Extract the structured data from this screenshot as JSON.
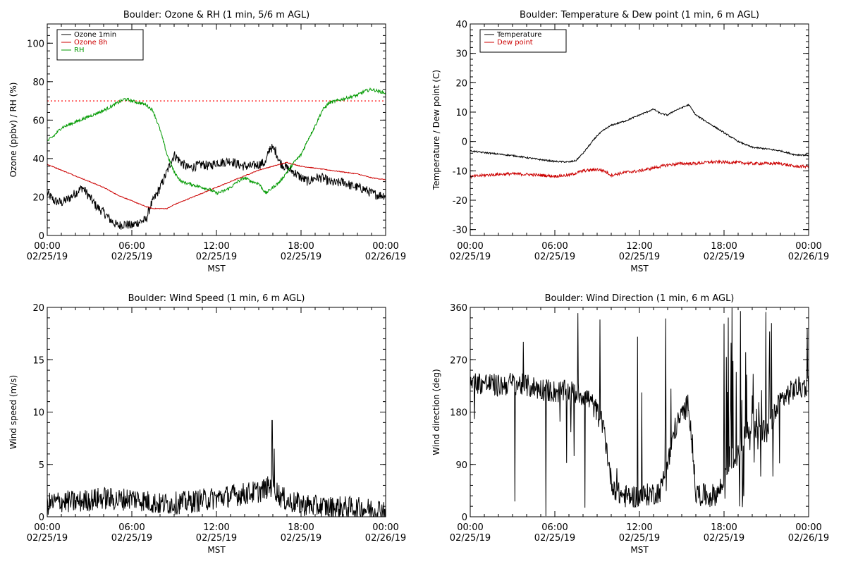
{
  "x_tick_labels": [
    "00:00\n02/25/19",
    "06:00\n02/25/19",
    "12:00\n02/25/19",
    "18:00\n02/25/19",
    "00:00\n02/26/19"
  ],
  "x_tick_hours": [
    0,
    6,
    12,
    18,
    24
  ],
  "chart_data": [
    {
      "id": "ozone-rh",
      "type": "line",
      "title": "Boulder: Ozone & RH (1 min, 5/6 m AGL)",
      "xlabel": "MST",
      "ylabel": "Ozone (ppbv) / RH (%)",
      "xlim": [
        0,
        24
      ],
      "ylim": [
        0,
        110
      ],
      "yticks": [
        0,
        20,
        40,
        60,
        80,
        100
      ],
      "legend_position": "top-left",
      "reference_line": {
        "y": 70,
        "color": "#ff0000",
        "style": "dotted"
      },
      "series": [
        {
          "name": "Ozone 1min",
          "color": "#000000",
          "noise": 2.5,
          "points": [
            [
              0,
              22
            ],
            [
              0.5,
              18
            ],
            [
              1,
              17
            ],
            [
              1.5,
              19
            ],
            [
              2,
              22
            ],
            [
              2.5,
              25
            ],
            [
              3,
              20
            ],
            [
              3.5,
              15
            ],
            [
              4,
              12
            ],
            [
              4.5,
              8
            ],
            [
              5,
              5
            ],
            [
              5.5,
              6
            ],
            [
              6,
              5
            ],
            [
              6.5,
              7
            ],
            [
              7,
              8
            ],
            [
              7.3,
              15
            ],
            [
              7.8,
              22
            ],
            [
              8.2,
              28
            ],
            [
              8.6,
              35
            ],
            [
              9,
              42
            ],
            [
              9.5,
              38
            ],
            [
              10,
              35
            ],
            [
              10.5,
              36
            ],
            [
              11,
              37
            ],
            [
              11.5,
              36
            ],
            [
              12,
              38
            ],
            [
              12.5,
              38
            ],
            [
              13,
              39
            ],
            [
              13.5,
              37
            ],
            [
              14,
              36
            ],
            [
              14.5,
              36
            ],
            [
              15,
              37
            ],
            [
              15.5,
              38
            ],
            [
              15.8,
              46
            ],
            [
              16.2,
              44
            ],
            [
              16.5,
              38
            ],
            [
              17,
              35
            ],
            [
              17.5,
              33
            ],
            [
              18,
              30
            ],
            [
              18.5,
              28
            ],
            [
              19,
              30
            ],
            [
              19.5,
              30
            ],
            [
              20,
              28
            ],
            [
              20.5,
              27
            ],
            [
              21,
              28
            ],
            [
              21.5,
              26
            ],
            [
              22,
              25
            ],
            [
              22.5,
              24
            ],
            [
              23,
              22
            ],
            [
              23.5,
              21
            ],
            [
              24,
              21
            ]
          ]
        },
        {
          "name": "Ozone 8h",
          "color": "#cc0000",
          "noise": 0.2,
          "points": [
            [
              0,
              37
            ],
            [
              1,
              34
            ],
            [
              2,
              31
            ],
            [
              3,
              28
            ],
            [
              4,
              25
            ],
            [
              5,
              21
            ],
            [
              6,
              18
            ],
            [
              7,
              15
            ],
            [
              7.5,
              14
            ],
            [
              8,
              14
            ],
            [
              8.5,
              14
            ],
            [
              9,
              16
            ],
            [
              10,
              19
            ],
            [
              11,
              22
            ],
            [
              12,
              25
            ],
            [
              13,
              28
            ],
            [
              14,
              31
            ],
            [
              15,
              34
            ],
            [
              16,
              36
            ],
            [
              16.5,
              37
            ],
            [
              17,
              38
            ],
            [
              17.5,
              37
            ],
            [
              18,
              36
            ],
            [
              19,
              35
            ],
            [
              20,
              34
            ],
            [
              21,
              33
            ],
            [
              22,
              32
            ],
            [
              23,
              30
            ],
            [
              24,
              29
            ]
          ]
        },
        {
          "name": "RH",
          "color": "#009900",
          "noise": 0.8,
          "points": [
            [
              0,
              49
            ],
            [
              0.5,
              52
            ],
            [
              1,
              56
            ],
            [
              2,
              59
            ],
            [
              3,
              62
            ],
            [
              4,
              65
            ],
            [
              5,
              69
            ],
            [
              5.5,
              71
            ],
            [
              6,
              70
            ],
            [
              6.5,
              69
            ],
            [
              7,
              68
            ],
            [
              7.5,
              65
            ],
            [
              8,
              55
            ],
            [
              8.5,
              42
            ],
            [
              9,
              33
            ],
            [
              9.5,
              28
            ],
            [
              10,
              27
            ],
            [
              10.5,
              26
            ],
            [
              11,
              25
            ],
            [
              11.5,
              24
            ],
            [
              12,
              22
            ],
            [
              12.5,
              23
            ],
            [
              13,
              25
            ],
            [
              13.5,
              28
            ],
            [
              14,
              30
            ],
            [
              14.5,
              28
            ],
            [
              15,
              27
            ],
            [
              15.5,
              22
            ],
            [
              16,
              25
            ],
            [
              16.5,
              28
            ],
            [
              17,
              33
            ],
            [
              17.5,
              38
            ],
            [
              18,
              42
            ],
            [
              18.5,
              50
            ],
            [
              19,
              57
            ],
            [
              19.5,
              65
            ],
            [
              20,
              69
            ],
            [
              20.5,
              70
            ],
            [
              21,
              71
            ],
            [
              21.5,
              72
            ],
            [
              22,
              73
            ],
            [
              22.5,
              75
            ],
            [
              23,
              76
            ],
            [
              23.5,
              75
            ],
            [
              24,
              74
            ]
          ]
        }
      ]
    },
    {
      "id": "temp-dew",
      "type": "line",
      "title": "Boulder: Temperature & Dew point (1 min, 6 m AGL)",
      "xlabel": "MST",
      "ylabel": "Temperature / Dew point (C)",
      "xlim": [
        0,
        24
      ],
      "ylim": [
        -32,
        40
      ],
      "yticks": [
        -30,
        -20,
        -10,
        0,
        10,
        20,
        30,
        40
      ],
      "legend_position": "top-left",
      "series": [
        {
          "name": "Temperature",
          "color": "#000000",
          "noise": 0.25,
          "points": [
            [
              0,
              -3.2
            ],
            [
              1,
              -3.8
            ],
            [
              2,
              -4.3
            ],
            [
              3,
              -4.8
            ],
            [
              4,
              -5.5
            ],
            [
              5,
              -6.2
            ],
            [
              6,
              -6.8
            ],
            [
              7,
              -7
            ],
            [
              7.5,
              -6.5
            ],
            [
              8,
              -4
            ],
            [
              8.5,
              -1
            ],
            [
              9,
              2
            ],
            [
              9.5,
              4
            ],
            [
              10,
              5.5
            ],
            [
              11,
              7
            ],
            [
              12,
              9
            ],
            [
              12.5,
              10
            ],
            [
              13,
              11
            ],
            [
              13.5,
              9.5
            ],
            [
              14,
              9
            ],
            [
              14.5,
              10.5
            ],
            [
              15,
              11.5
            ],
            [
              15.5,
              12.5
            ],
            [
              16,
              9
            ],
            [
              17,
              6
            ],
            [
              18,
              3
            ],
            [
              19,
              0
            ],
            [
              20,
              -2
            ],
            [
              21,
              -2.5
            ],
            [
              22,
              -3.2
            ],
            [
              23,
              -4.5
            ],
            [
              24,
              -4.7
            ]
          ]
        },
        {
          "name": "Dew point",
          "color": "#cc0000",
          "noise": 0.5,
          "points": [
            [
              0,
              -12
            ],
            [
              1,
              -11.5
            ],
            [
              2,
              -11.2
            ],
            [
              3,
              -11
            ],
            [
              4,
              -11.2
            ],
            [
              5,
              -11.5
            ],
            [
              6,
              -11.8
            ],
            [
              7,
              -11.5
            ],
            [
              8,
              -10
            ],
            [
              9,
              -9.5
            ],
            [
              9.5,
              -10
            ],
            [
              10,
              -11.5
            ],
            [
              11,
              -10.5
            ],
            [
              12,
              -10
            ],
            [
              13,
              -9
            ],
            [
              14,
              -8
            ],
            [
              15,
              -7.5
            ],
            [
              16,
              -7.5
            ],
            [
              17,
              -7
            ],
            [
              18,
              -7
            ],
            [
              19,
              -7.2
            ],
            [
              20,
              -7.5
            ],
            [
              21,
              -7.5
            ],
            [
              22,
              -7.5
            ],
            [
              23,
              -8.5
            ],
            [
              24,
              -8.5
            ]
          ]
        }
      ]
    },
    {
      "id": "wind-speed",
      "type": "line",
      "title": "Boulder: Wind Speed (1 min, 6 m AGL)",
      "xlabel": "MST",
      "ylabel": "Wind speed (m/s)",
      "xlim": [
        0,
        24
      ],
      "ylim": [
        0,
        20
      ],
      "yticks": [
        0,
        5,
        10,
        15,
        20
      ],
      "series": [
        {
          "name": "",
          "color": "#000000",
          "noise": 1.1,
          "spikes": [
            [
              15.95,
              9.2
            ],
            [
              16.1,
              6.5
            ]
          ],
          "points": [
            [
              0,
              1.2
            ],
            [
              1,
              1.5
            ],
            [
              2,
              1.4
            ],
            [
              3,
              1.6
            ],
            [
              4,
              1.8
            ],
            [
              5,
              1.6
            ],
            [
              6,
              1.8
            ],
            [
              7,
              1.5
            ],
            [
              8,
              1.2
            ],
            [
              9,
              1.3
            ],
            [
              10,
              1.4
            ],
            [
              11,
              1.6
            ],
            [
              12,
              1.8
            ],
            [
              13,
              2
            ],
            [
              14,
              2.2
            ],
            [
              15,
              2.4
            ],
            [
              16,
              3
            ],
            [
              16.5,
              2
            ],
            [
              17,
              1.5
            ],
            [
              18,
              1.2
            ],
            [
              19,
              1
            ],
            [
              20,
              0.9
            ],
            [
              21,
              0.9
            ],
            [
              22,
              0.8
            ],
            [
              23,
              0.7
            ],
            [
              24,
              0.7
            ]
          ]
        }
      ]
    },
    {
      "id": "wind-direction",
      "type": "line",
      "title": "Boulder: Wind Direction (1 min, 6 m AGL)",
      "xlabel": "MST",
      "ylabel": "Wind direction (deg)",
      "xlim": [
        0,
        24
      ],
      "ylim": [
        0,
        360
      ],
      "yticks": [
        0,
        90,
        180,
        270,
        360
      ],
      "series": [
        {
          "name": "",
          "color": "#000000",
          "noise": 20,
          "points": [
            [
              0,
              230
            ],
            [
              1,
              230
            ],
            [
              2,
              225
            ],
            [
              3,
              230
            ],
            [
              4,
              225
            ],
            [
              5,
              220
            ],
            [
              6,
              215
            ],
            [
              7,
              215
            ],
            [
              8,
              210
            ],
            [
              8.5,
              200
            ],
            [
              9,
              180
            ],
            [
              9.5,
              150
            ],
            [
              10,
              60
            ],
            [
              10.5,
              40
            ],
            [
              11,
              35
            ],
            [
              12,
              35
            ],
            [
              13,
              40
            ],
            [
              13.5,
              45
            ],
            [
              14,
              100
            ],
            [
              14.5,
              150
            ],
            [
              15,
              175
            ],
            [
              15.5,
              195
            ],
            [
              16,
              40
            ],
            [
              17,
              35
            ],
            [
              17.5,
              40
            ],
            [
              18,
              60
            ],
            [
              19,
              120
            ],
            [
              20,
              160
            ],
            [
              21,
              140
            ],
            [
              22,
              200
            ],
            [
              23,
              220
            ],
            [
              24,
              225
            ]
          ]
        }
      ]
    }
  ]
}
